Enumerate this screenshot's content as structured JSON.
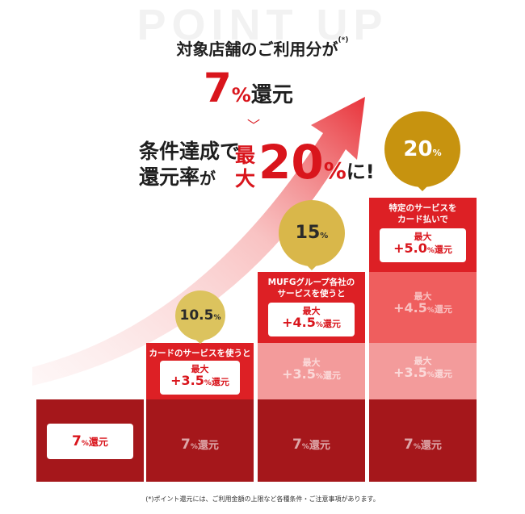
{
  "background_word": "POINT UP",
  "headline": {
    "line1": "対象店舗のご利用分が",
    "line1_note": "(*)",
    "rate_num": "7",
    "rate_pct": "%",
    "rate_word": "還元",
    "sep": "﹀",
    "cond_line1": "条件達成で",
    "cond_line2a": "還元率",
    "cond_line2b": "が",
    "max_top": "最",
    "max_bot": "大",
    "max_num": "20",
    "max_pct": "%",
    "max_tail": "に!"
  },
  "columns": [
    {
      "caption": "",
      "base": {
        "num": "7",
        "pct": "%",
        "word": "還元"
      }
    },
    {
      "circle": {
        "num": "10.5",
        "pct": "%"
      },
      "caption": "カードのサービスを使うと",
      "pill": {
        "top": "最大",
        "plus": "+3.5",
        "pct": "%",
        "word": "還元"
      },
      "base": {
        "num": "7",
        "pct": "%",
        "word": "還元"
      }
    },
    {
      "circle": {
        "num": "15",
        "pct": "%"
      },
      "caption1": "MUFGグループ各社の",
      "caption2": "サービスを使うと",
      "pill": {
        "top": "最大",
        "plus": "+4.5",
        "pct": "%",
        "word": "還元"
      },
      "ghost1": {
        "top": "最大",
        "plus": "+3.5",
        "pct": "%",
        "word": "還元"
      },
      "base": {
        "num": "7",
        "pct": "%",
        "word": "還元"
      }
    },
    {
      "circle": {
        "num": "20",
        "pct": "%"
      },
      "caption1": "特定のサービスを",
      "caption2": "カード払いで",
      "pill": {
        "top": "最大",
        "plus": "+5.0",
        "pct": "%",
        "word": "還元"
      },
      "ghost2": {
        "top": "最大",
        "plus": "+4.5",
        "pct": "%",
        "word": "還元"
      },
      "ghost1": {
        "top": "最大",
        "plus": "+3.5",
        "pct": "%",
        "word": "還元"
      },
      "base": {
        "num": "7",
        "pct": "%",
        "word": "還元"
      }
    }
  ],
  "footnote": "(*)ポイント還元には、ご利用金額の上限など各種条件・ご注意事項があります。",
  "colors": {
    "dark_red": "#a5171b",
    "red": "#dd2025",
    "mid_red": "#ef5e5e",
    "light_red": "#f39b9b",
    "gold_light": "#dcc35e",
    "gold_mid": "#d4a52a",
    "gold_dark": "#c58f0b"
  }
}
